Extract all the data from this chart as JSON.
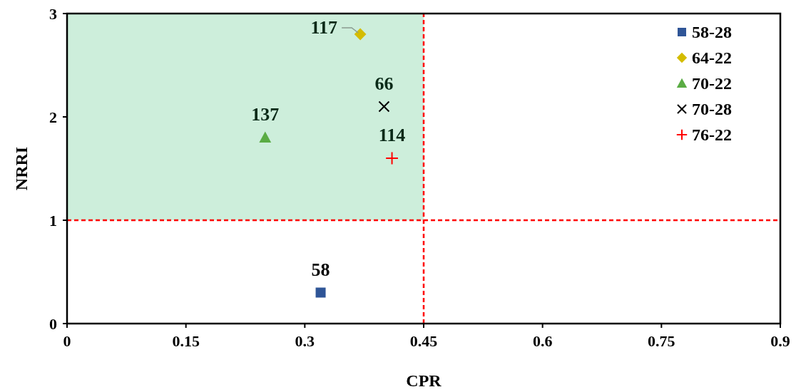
{
  "chart_data": {
    "type": "scatter",
    "xlabel": "CPR",
    "ylabel": "NRRI",
    "xlim": [
      0,
      0.9
    ],
    "xticks": [
      0,
      0.15,
      0.3,
      0.45,
      0.6,
      0.75,
      0.9
    ],
    "ylim": [
      0,
      3
    ],
    "yticks": [
      0,
      1,
      2,
      3
    ],
    "grid": false,
    "legend": "top right",
    "series": [
      {
        "name": "58-28",
        "color": "#2f5597",
        "marker": "square",
        "x": [
          0.32
        ],
        "values": [
          0.3
        ]
      },
      {
        "name": "64-22",
        "color": "#d4bc00",
        "marker": "diamond",
        "x": [
          0.37
        ],
        "values": [
          2.8
        ]
      },
      {
        "name": "70-22",
        "color": "#5aac44",
        "marker": "triangle",
        "x": [
          0.25
        ],
        "values": [
          1.8
        ]
      },
      {
        "name": "70-28",
        "color": "#000000",
        "marker": "cross",
        "x": [
          0.4
        ],
        "values": [
          2.1
        ]
      },
      {
        "name": "76-22",
        "color": "#ff0000",
        "marker": "plus",
        "x": [
          0.41
        ],
        "values": [
          1.6
        ]
      }
    ],
    "annotations": [
      {
        "text": "58",
        "x": 0.32,
        "y": 0.3
      },
      {
        "text": "117",
        "x": 0.37,
        "y": 2.8
      },
      {
        "text": "137",
        "x": 0.25,
        "y": 1.8
      },
      {
        "text": "66",
        "x": 0.4,
        "y": 2.1
      },
      {
        "text": "114",
        "x": 0.41,
        "y": 1.6
      }
    ],
    "bands": [
      {
        "axis": "x",
        "from": 0,
        "to": 0.45,
        "color": "#cdeedb"
      }
    ],
    "ref_lines": [
      {
        "axis": "x",
        "value": 0.45,
        "color": "#ff0000",
        "line_style": "dashed"
      },
      {
        "axis": "y",
        "value": 1,
        "color": "#ff0000",
        "line_style": "dashed"
      }
    ]
  }
}
